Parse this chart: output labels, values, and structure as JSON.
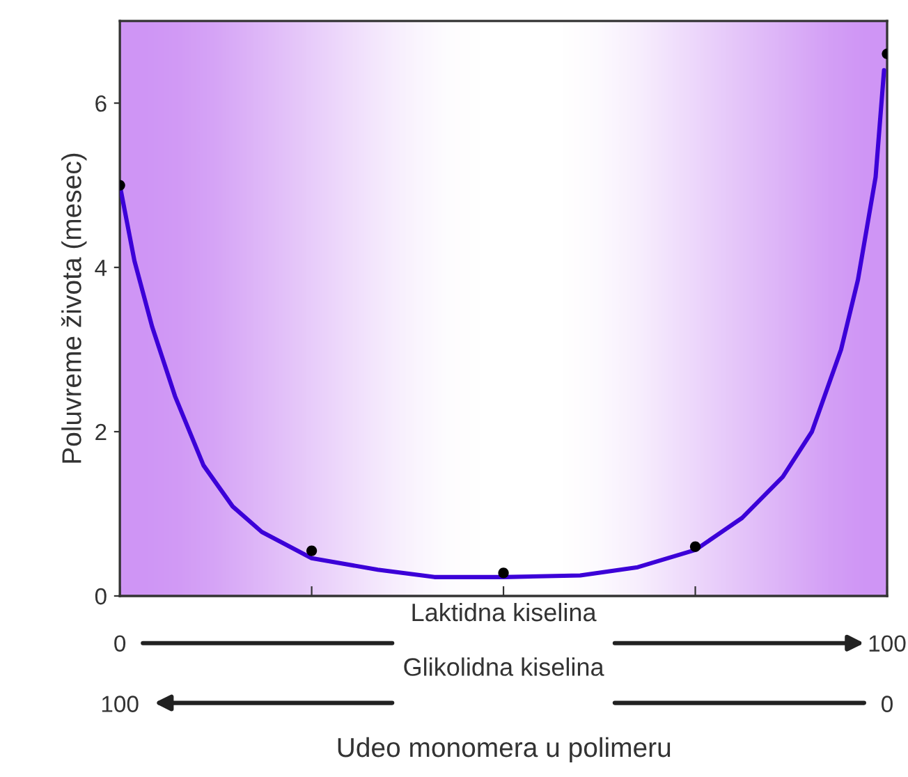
{
  "chart_data": {
    "type": "line",
    "ylabel": "Poluvreme života (mesec)",
    "xlabel": "Laktidna kiselina",
    "x2label": "Glikolidna kiselina",
    "annotations": [
      "Udeo monomera u polimeru"
    ],
    "series": [
      {
        "color": "#3c00d8",
        "marker": "none",
        "x": [
          0,
          1.9,
          4.2,
          7.2,
          10.9,
          14.7,
          18.5,
          25,
          33.6,
          41,
          50,
          60,
          67.5,
          75,
          81.1,
          86.4,
          90.2,
          94,
          96.2,
          98.5,
          99.6
        ],
        "values": [
          5.0,
          4.08,
          3.28,
          2.43,
          1.59,
          1.09,
          0.78,
          0.46,
          0.32,
          0.23,
          0.23,
          0.25,
          0.35,
          0.56,
          0.95,
          1.45,
          2.0,
          3.0,
          3.85,
          5.1,
          6.4
        ]
      },
      {
        "type": "scatter",
        "color": "#000000",
        "marker": "circle",
        "x": [
          0,
          25,
          50,
          75,
          100
        ],
        "values": [
          5.0,
          0.55,
          0.28,
          0.6,
          6.6
        ]
      }
    ],
    "xlim": [
      0,
      100
    ],
    "xticks": [
      0,
      {
        "value": 25,
        "label": null
      },
      {
        "value": 50,
        "label": null
      },
      {
        "value": 75,
        "label": null
      },
      100
    ],
    "x2lim": [
      100,
      0
    ],
    "x2ticks": [
      100,
      0
    ],
    "ylim": [
      0,
      7
    ],
    "yticks": [
      0,
      2,
      4,
      6
    ],
    "grid": false,
    "legend": false
  }
}
